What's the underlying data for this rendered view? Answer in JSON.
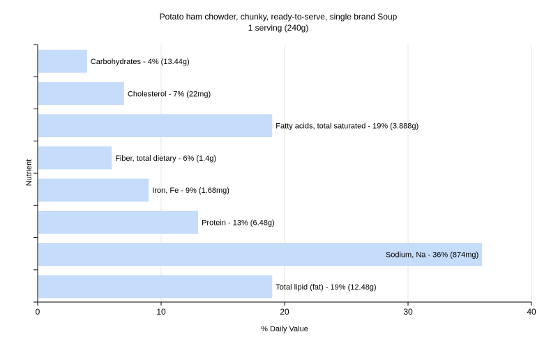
{
  "chart_data": {
    "type": "bar",
    "orientation": "horizontal",
    "title": "Potato ham chowder, chunky, ready-to-serve, single brand Soup",
    "subtitle": "1 serving (240g)",
    "xlabel": "% Daily Value",
    "ylabel": "Nutrient",
    "xlim": [
      0,
      40
    ],
    "xticks": [
      0,
      10,
      20,
      30,
      40
    ],
    "grid": true,
    "bar_color": "#c6dcfb",
    "categories": [
      "Carbohydrates",
      "Cholesterol",
      "Fatty acids, total saturated",
      "Fiber, total dietary",
      "Iron, Fe",
      "Protein",
      "Sodium, Na",
      "Total lipid (fat)"
    ],
    "values": [
      4,
      7,
      19,
      6,
      9,
      13,
      36,
      19
    ],
    "labels": [
      "Carbohydrates - 4% (13.44g)",
      "Cholesterol - 7% (22mg)",
      "Fatty acids, total saturated - 19% (3.888g)",
      "Fiber, total dietary - 6% (1.4g)",
      "Iron, Fe - 9% (1.68mg)",
      "Protein - 13% (6.48g)",
      "Sodium, Na - 36% (874mg)",
      "Total lipid (fat) - 19% (12.48g)"
    ]
  }
}
